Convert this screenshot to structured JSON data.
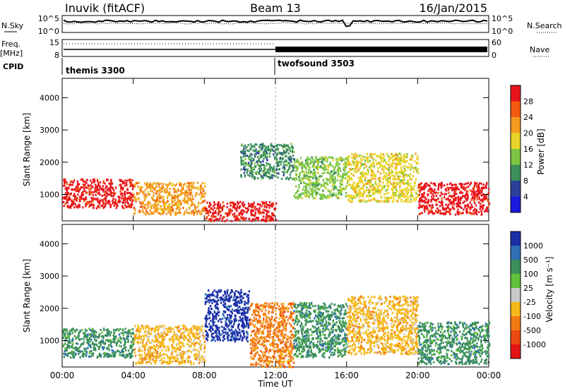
{
  "header": {
    "station": "Inuvik (fitACF)",
    "beam": "Beam 13",
    "date": "16/Jan/2015"
  },
  "noise_panel": {
    "left_label": "N.Sky",
    "left_ticks": [
      "10^5",
      "10^0"
    ],
    "right_ticks": [
      "10^5",
      "10^0"
    ],
    "right_label": "N.Search"
  },
  "freq_panel": {
    "left_label_1": "Freq.",
    "left_label_2": "[MHz]",
    "left_ticks": [
      "15",
      "8"
    ],
    "right_ticks": [
      "60",
      "0"
    ],
    "right_label": "Nave"
  },
  "cpid": {
    "label": "CPID",
    "modes": [
      {
        "name": "themis 3300",
        "start_hour": 0
      },
      {
        "name": "twofsound 3503",
        "start_hour": 12
      }
    ]
  },
  "chart_data": [
    {
      "type": "heatmap",
      "quantity": "Power",
      "ylabel": "Slant Range [km]",
      "ylim": [
        180,
        4600
      ],
      "xlim_hours": [
        0,
        24
      ],
      "y_ticks": [
        1000,
        2000,
        3000,
        4000
      ],
      "colorbar": {
        "label": "Power [dB]",
        "tick_labels": [
          "28",
          "24",
          "20",
          "16",
          "12",
          "8",
          "4"
        ],
        "colors": [
          "#e8141c",
          "#f35a10",
          "#f39b1e",
          "#e8d428",
          "#7cc543",
          "#3b8f5a",
          "#2b3f9a",
          "#1a1ae0"
        ]
      },
      "echo_regions": [
        {
          "start_hour": 0.0,
          "end_hour": 4.0,
          "range_km": [
            600,
            1500
          ],
          "level": 28
        },
        {
          "start_hour": 4.0,
          "end_hour": 8.0,
          "range_km": [
            400,
            1400
          ],
          "level": 20
        },
        {
          "start_hour": 8.0,
          "end_hour": 12.0,
          "range_km": [
            200,
            800
          ],
          "level": 28
        },
        {
          "start_hour": 10.0,
          "end_hour": 13.0,
          "range_km": [
            1500,
            2600
          ],
          "level": 8
        },
        {
          "start_hour": 13.0,
          "end_hour": 16.0,
          "range_km": [
            900,
            2200
          ],
          "level": 12
        },
        {
          "start_hour": 16.0,
          "end_hour": 20.0,
          "range_km": [
            800,
            2300
          ],
          "level": 16
        },
        {
          "start_hour": 20.0,
          "end_hour": 24.0,
          "range_km": [
            400,
            1400
          ],
          "level": 28
        }
      ]
    },
    {
      "type": "heatmap",
      "quantity": "Velocity",
      "ylabel": "Slant Range [km]",
      "ylim": [
        180,
        4600
      ],
      "xlim_hours": [
        0,
        24
      ],
      "y_ticks": [
        1000,
        2000,
        3000,
        4000
      ],
      "colorbar": {
        "label": "Velocity [m s⁻¹]",
        "tick_labels": [
          "1000",
          "500",
          "100",
          "25",
          "-25",
          "-100",
          "-500",
          "-1000"
        ],
        "colors": [
          "#1c2fa8",
          "#2f6fb6",
          "#3b8f5a",
          "#5fc23a",
          "#c8c8c8",
          "#f5b91a",
          "#f37a12",
          "#ec4a10",
          "#e41414"
        ]
      },
      "echo_regions": [
        {
          "start_hour": 0.0,
          "end_hour": 4.0,
          "range_km": [
            500,
            1400
          ],
          "level": 100
        },
        {
          "start_hour": 4.0,
          "end_hour": 8.0,
          "range_km": [
            300,
            1500
          ],
          "level": -100
        },
        {
          "start_hour": 8.0,
          "end_hour": 10.5,
          "range_km": [
            1000,
            2600
          ],
          "level": 1000
        },
        {
          "start_hour": 10.5,
          "end_hour": 13.0,
          "range_km": [
            200,
            2200
          ],
          "level": -500
        },
        {
          "start_hour": 13.0,
          "end_hour": 16.0,
          "range_km": [
            500,
            2200
          ],
          "level": 100
        },
        {
          "start_hour": 16.0,
          "end_hour": 20.0,
          "range_km": [
            600,
            2400
          ],
          "level": -100
        },
        {
          "start_hour": 20.0,
          "end_hour": 24.0,
          "range_km": [
            300,
            1600
          ],
          "level": 100
        }
      ]
    }
  ],
  "x_axis": {
    "tick_labels": [
      "00:00",
      "04:00",
      "08:00",
      "12:00",
      "16:00",
      "20:00",
      "00:00"
    ],
    "label": "Time UT"
  }
}
